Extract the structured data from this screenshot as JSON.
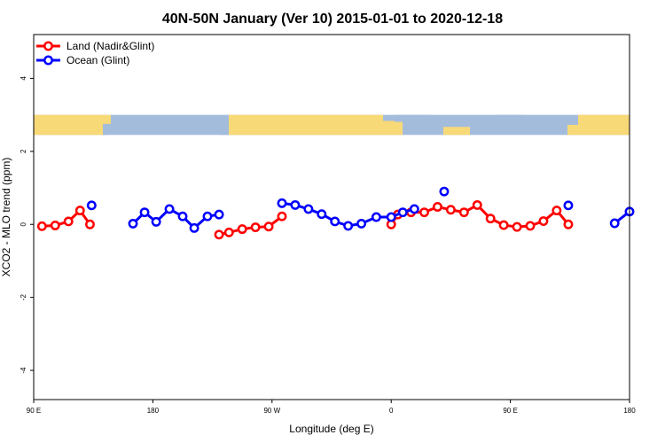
{
  "chart_data": {
    "type": "line",
    "title": "40N-50N January (Ver 10)   2015-01-01 to 2020-12-18",
    "xlabel": "Longitude (deg E)",
    "ylabel": "XCO2 - MLO trend (ppm)",
    "xlim": [
      90,
      450
    ],
    "ylim": [
      -4.8,
      5.2
    ],
    "x_ticks": [
      {
        "value": 90,
        "label": "90 E"
      },
      {
        "value": 162,
        "label": "180"
      },
      {
        "value": 234,
        "label": "90 W"
      },
      {
        "value": 306,
        "label": "0"
      },
      {
        "value": 378,
        "label": "90 E"
      },
      {
        "value": 450,
        "label": "180"
      }
    ],
    "y_ticks": [
      {
        "value": -4,
        "label": "-4"
      },
      {
        "value": -2,
        "label": "-2"
      },
      {
        "value": 0,
        "label": "0"
      },
      {
        "value": 2,
        "label": "2"
      },
      {
        "value": 4,
        "label": "4"
      }
    ],
    "legend_position": "top-left",
    "map_strip": {
      "y_range": [
        2.45,
        3.0
      ],
      "land_color": "#F8D978",
      "ocean_color": "#A4BCDC"
    },
    "series": [
      {
        "name": "Land (Nadir&Glint)",
        "color": "#ff0000",
        "segments": [
          [
            [
              95,
              -0.05
            ],
            [
              103,
              -0.03
            ],
            [
              111,
              0.08
            ],
            [
              118,
              0.38
            ],
            [
              124,
              0.0
            ]
          ],
          [
            [
              202,
              -0.28
            ],
            [
              208,
              -0.22
            ],
            [
              216,
              -0.13
            ],
            [
              224,
              -0.08
            ],
            [
              232,
              -0.06
            ],
            [
              240,
              0.22
            ]
          ],
          [
            [
              306,
              0.0
            ],
            [
              310,
              0.27
            ],
            [
              318,
              0.33
            ],
            [
              326,
              0.33
            ],
            [
              334,
              0.48
            ],
            [
              342,
              0.4
            ],
            [
              350,
              0.33
            ],
            [
              358,
              0.53
            ],
            [
              366,
              0.16
            ],
            [
              374,
              -0.02
            ],
            [
              382,
              -0.07
            ],
            [
              390,
              -0.04
            ],
            [
              398,
              0.09
            ],
            [
              406,
              0.38
            ],
            [
              413,
              0.0
            ]
          ]
        ]
      },
      {
        "name": "Ocean (Glint)",
        "color": "#0000ff",
        "segments": [
          [
            [
              125,
              0.52
            ]
          ],
          [
            [
              150,
              0.02
            ],
            [
              157,
              0.33
            ],
            [
              164,
              0.07
            ],
            [
              172,
              0.42
            ],
            [
              180,
              0.22
            ],
            [
              187,
              -0.1
            ],
            [
              195,
              0.22
            ],
            [
              202,
              0.27
            ]
          ],
          [
            [
              240,
              0.58
            ],
            [
              248,
              0.53
            ],
            [
              256,
              0.42
            ],
            [
              264,
              0.28
            ],
            [
              272,
              0.08
            ],
            [
              280,
              -0.04
            ],
            [
              288,
              0.02
            ],
            [
              297,
              0.2
            ],
            [
              306,
              0.2
            ],
            [
              313,
              0.33
            ],
            [
              320,
              0.42
            ]
          ],
          [
            [
              338,
              0.9
            ]
          ],
          [
            [
              413,
              0.52
            ]
          ],
          [
            [
              441,
              0.03
            ],
            [
              450,
              0.35
            ]
          ]
        ]
      }
    ]
  }
}
